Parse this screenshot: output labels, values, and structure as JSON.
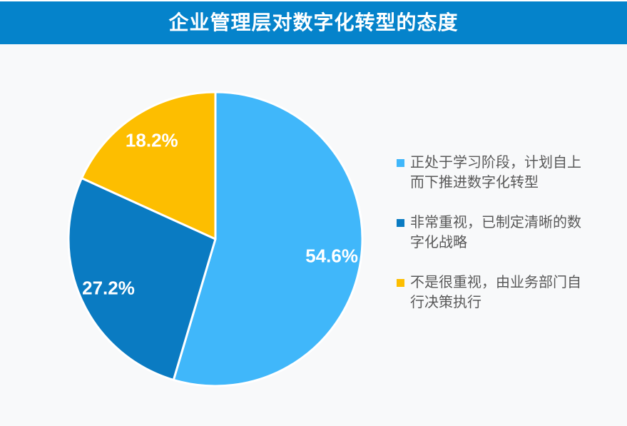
{
  "header": {
    "title": "企业管理层对数字化转型的态度"
  },
  "colors": {
    "banner": "#0583CB",
    "chart_background": "#F8F9FA",
    "slice_label_text": "#FFFFFF",
    "legend_text": "#595959",
    "slice_separator": "#FFFFFF"
  },
  "chart_data": {
    "type": "pie",
    "title": "企业管理层对数字化转型的态度",
    "start_angle_deg": 0,
    "direction": "clockwise",
    "legend_position": "right",
    "slices": [
      {
        "name": "正处于学习阶段，计划自上而下推进数字化转型",
        "value": 54.6,
        "display_label": "54.6%",
        "color": "#40B7FA",
        "legend_label": "正处于学习阶段，计划自上\n而下推进数字化转型"
      },
      {
        "name": "非常重视，已制定清晰的数字化战略",
        "value": 27.2,
        "display_label": "27.2%",
        "color": "#0A7BC2",
        "legend_label": "非常重视，已制定清晰的数\n字化战略"
      },
      {
        "name": "不是很重视，由业务部门自行决策执行",
        "value": 18.2,
        "display_label": "18.2%",
        "color": "#FDBE00",
        "legend_label": "不是很重视，由业务部门自\n行决策执行"
      }
    ]
  }
}
